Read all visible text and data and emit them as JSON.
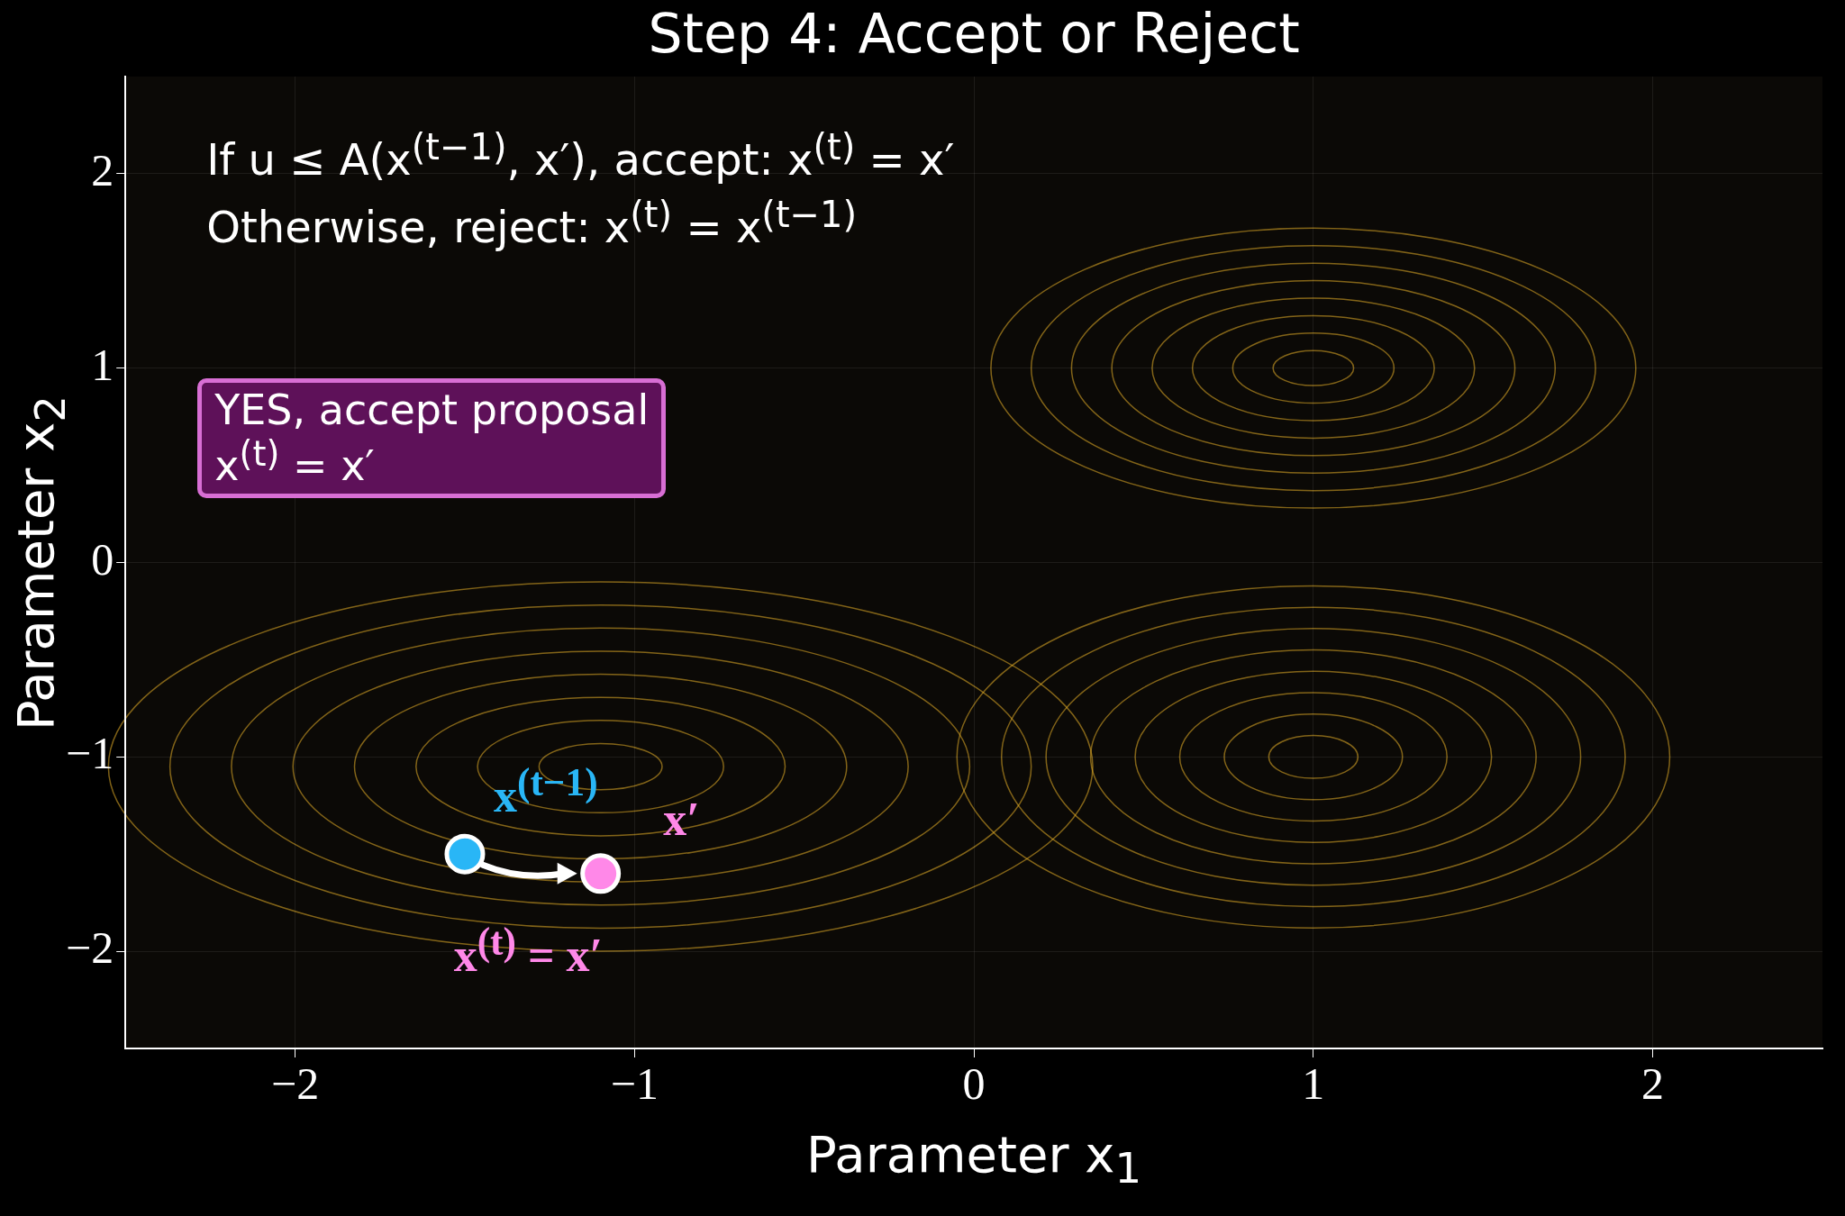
{
  "chart_data": {
    "type": "scatter",
    "title": "Step 4: Accept or Reject",
    "xlabel": "Parameter x$_{1}$",
    "ylabel": "Parameter x$_{2}$",
    "xlim": [
      -2.5,
      2.5
    ],
    "ylim": [
      -2.5,
      2.5
    ],
    "xticks": [
      {
        "value": -2,
        "label": "−2"
      },
      {
        "value": -1,
        "label": "−1"
      },
      0,
      1,
      2
    ],
    "yticks": [
      {
        "value": -2,
        "label": "−2"
      },
      {
        "value": -1,
        "label": "−1"
      },
      0,
      1,
      2
    ],
    "grid": true,
    "legend": false,
    "marker": "circle",
    "series": [
      {
        "color": "#29b6f6",
        "x": [
          -1.5
        ],
        "values": [
          -1.5
        ]
      },
      {
        "color": "#ff88e8",
        "x": [
          -1.1
        ],
        "values": [
          -1.6
        ]
      }
    ],
    "annotations": [
      "If u ≤ A(x$^{(t−1)}$, x′), accept: x$^{(t)}$ = x′",
      "Otherwise, reject: x$^{(t)}$ = x$^{(t−1)}$",
      "YES, accept proposal\nx$^{(t)}$ = x′",
      "x$^{(t−1)}$",
      "x′",
      "x$^{(t)}$ = x′"
    ]
  }
}
